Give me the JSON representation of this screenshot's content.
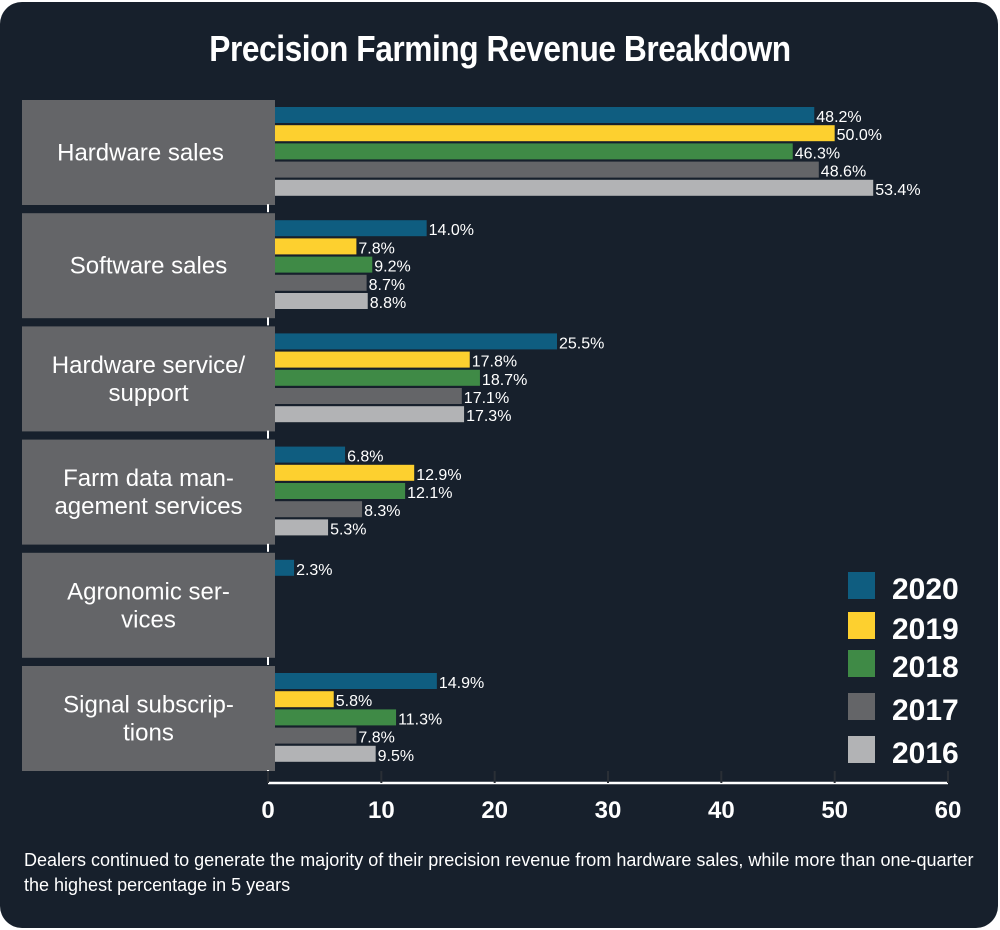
{
  "chart_data": {
    "type": "bar",
    "orientation": "horizontal",
    "title": "Precision Farming Revenue Breakdown",
    "caption": "Dealers continued to generate the majority of their precision revenue from hardware sales, while more than one-quarter the highest percentage in 5 years",
    "categories": [
      {
        "lines": [
          "Hardware sales"
        ]
      },
      {
        "lines": [
          "Software sales"
        ]
      },
      {
        "lines": [
          "Hardware service/",
          "support"
        ]
      },
      {
        "lines": [
          "Farm data man-",
          "agement services"
        ]
      },
      {
        "lines": [
          "Agronomic ser-",
          "vices"
        ]
      },
      {
        "lines": [
          "Signal subscrip-",
          "tions"
        ]
      }
    ],
    "series": [
      {
        "name": "2020",
        "color": "#0f5d80",
        "values": [
          48.2,
          14.0,
          25.5,
          6.8,
          2.3,
          14.9
        ],
        "labels": [
          "48.2%",
          "14.0%",
          "25.5%",
          "6.8%",
          "2.3%",
          "14.9%"
        ]
      },
      {
        "name": "2019",
        "color": "#fdd02f",
        "values": [
          50.0,
          7.8,
          17.8,
          12.9,
          null,
          5.8
        ],
        "labels": [
          "50.0%",
          "7.8%",
          "17.8%",
          "12.9%",
          null,
          "5.8%"
        ]
      },
      {
        "name": "2018",
        "color": "#3f8a46",
        "values": [
          46.3,
          9.2,
          18.7,
          12.1,
          null,
          11.3
        ],
        "labels": [
          "46.3%",
          "9.2%",
          "18.7%",
          "12.1%",
          null,
          "11.3%"
        ]
      },
      {
        "name": "2017",
        "color": "#646568",
        "values": [
          48.6,
          8.7,
          17.1,
          8.3,
          null,
          7.8
        ],
        "labels": [
          "48.6%",
          "8.7%",
          "17.1%",
          "8.3%",
          null,
          "7.8%"
        ]
      },
      {
        "name": "2016",
        "color": "#b2b3b5",
        "values": [
          53.4,
          8.8,
          17.3,
          5.3,
          null,
          9.5
        ],
        "labels": [
          "53.4%",
          "8.8%",
          "17.3%",
          "5.3%",
          null,
          "9.5%"
        ]
      }
    ],
    "xlim": [
      0,
      60
    ],
    "xticks": [
      0,
      10,
      20,
      30,
      40,
      50,
      60
    ],
    "xtick_labels": [
      "0",
      "10",
      "20",
      "30",
      "40",
      "50",
      "60"
    ],
    "xlabel": "",
    "ylabel": "",
    "grid": false,
    "legend": {
      "position": "bottom-right",
      "entries": [
        "2020",
        "2019",
        "2018",
        "2017",
        "2016"
      ]
    },
    "colors": {
      "background": "#17202c",
      "category_box": "#646568",
      "text": "#ffffff"
    }
  }
}
